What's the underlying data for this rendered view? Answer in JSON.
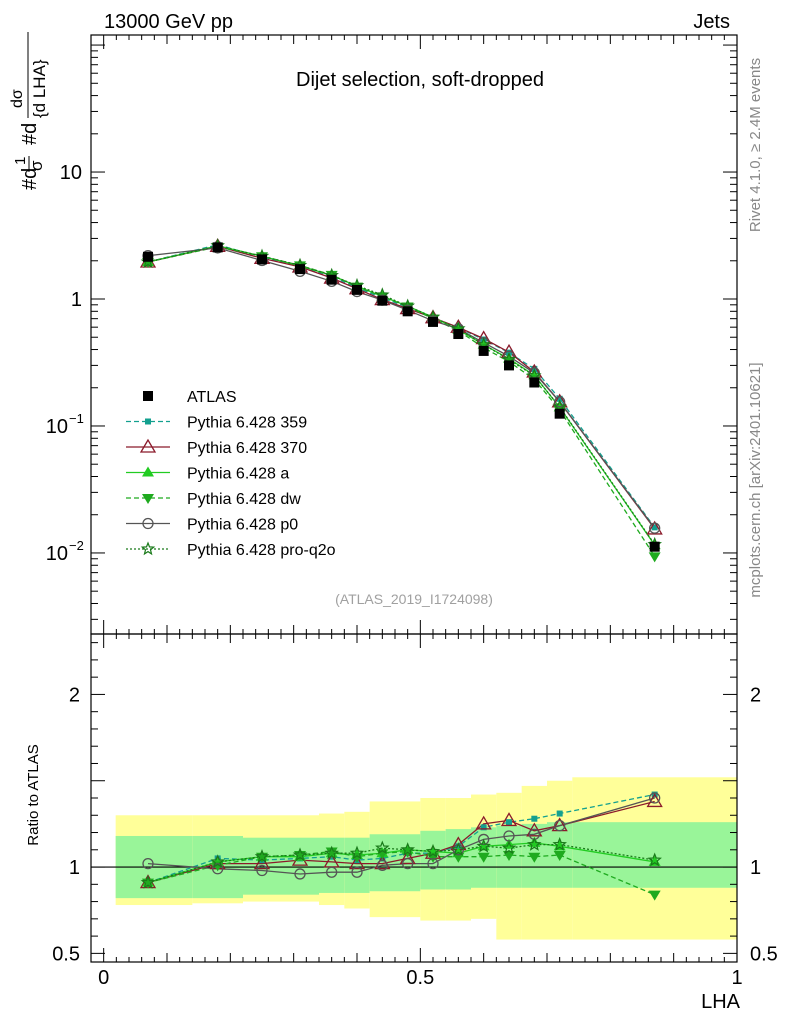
{
  "header": {
    "left": "13000 GeV pp",
    "right": "Jets"
  },
  "side_labels": {
    "rivet": "Rivet 4.1.0, ≥ 2.4M events",
    "mcplots": "mcplots.cern.ch [arXiv:2401.10621]"
  },
  "chart_data": {
    "type": "scatter",
    "title": "Dijet selection, soft-dropped",
    "analysis": "(ATLAS_2019_I1724098)",
    "xlabel": "LHA",
    "ylabel": "#d¹/σ #d dσ/{d LHA}",
    "ratio_ylabel": "Ratio to ATLAS",
    "xlim": [
      -0.02,
      1.0
    ],
    "ylim_main": [
      0.0023,
      120
    ],
    "ylim_ratio": [
      0.45,
      2.35
    ],
    "x_ticks": [
      {
        "v": 0,
        "label": "0"
      },
      {
        "v": 0.5,
        "label": "0.5"
      },
      {
        "v": 1,
        "label": "1"
      }
    ],
    "y_ticks_main": [
      {
        "v": 0.01,
        "base": "10",
        "exp": "−2"
      },
      {
        "v": 0.1,
        "base": "10",
        "exp": "−1"
      },
      {
        "v": 1,
        "label": "1"
      },
      {
        "v": 10,
        "label": "10"
      }
    ],
    "y_ticks_ratio": [
      {
        "v": 0.5,
        "label": "0.5"
      },
      {
        "v": 1,
        "label": "1"
      },
      {
        "v": 2,
        "label": "2"
      }
    ],
    "bins": [
      [
        0.0,
        0.14
      ],
      [
        0.14,
        0.22
      ],
      [
        0.22,
        0.28
      ],
      [
        0.28,
        0.34
      ],
      [
        0.34,
        0.38
      ],
      [
        0.38,
        0.42
      ],
      [
        0.42,
        0.46
      ],
      [
        0.46,
        0.5
      ],
      [
        0.5,
        0.54
      ],
      [
        0.54,
        0.58
      ],
      [
        0.58,
        0.62
      ],
      [
        0.62,
        0.66
      ],
      [
        0.66,
        0.7
      ],
      [
        0.7,
        0.74
      ],
      [
        0.74,
        1.0
      ]
    ],
    "x": [
      0.07,
      0.18,
      0.25,
      0.31,
      0.36,
      0.4,
      0.44,
      0.48,
      0.52,
      0.56,
      0.6,
      0.64,
      0.68,
      0.72,
      0.87
    ],
    "data": {
      "name": "ATLAS",
      "values": [
        2.15,
        2.55,
        2.05,
        1.72,
        1.42,
        1.18,
        0.97,
        0.8,
        0.66,
        0.53,
        0.39,
        0.3,
        0.22,
        0.125,
        0.0112
      ],
      "band_inner": [
        0.82,
        0.82,
        0.84,
        0.84,
        0.85,
        0.85,
        0.86,
        0.86,
        0.87,
        0.87,
        0.88,
        0.88,
        0.88,
        0.88,
        0.88
      ],
      "band_outer": [
        0.78,
        0.79,
        0.8,
        0.8,
        0.78,
        0.76,
        0.71,
        0.71,
        0.69,
        0.69,
        0.7,
        0.58,
        0.58,
        0.58,
        0.58
      ],
      "band_inner_up": [
        1.18,
        1.18,
        1.17,
        1.17,
        1.17,
        1.17,
        1.19,
        1.19,
        1.21,
        1.22,
        1.23,
        1.24,
        1.25,
        1.26,
        1.26
      ],
      "band_outer_up": [
        1.3,
        1.3,
        1.3,
        1.3,
        1.31,
        1.32,
        1.38,
        1.38,
        1.4,
        1.4,
        1.42,
        1.43,
        1.47,
        1.5,
        1.52
      ]
    },
    "series": [
      {
        "name": "Pythia 6.428 359",
        "color": "#13a08f",
        "dash": "5,3",
        "marker": "square-small",
        "ratio": [
          0.91,
          1.05,
          1.04,
          1.05,
          1.06,
          1.04,
          1.05,
          1.08,
          1.08,
          1.12,
          1.23,
          1.26,
          1.28,
          1.31,
          1.42
        ]
      },
      {
        "name": "Pythia 6.428 370",
        "color": "#8b1a2b",
        "dash": "",
        "marker": "triangle-open",
        "ratio": [
          0.91,
          1.02,
          1.02,
          1.04,
          1.03,
          1.02,
          1.02,
          1.05,
          1.08,
          1.13,
          1.25,
          1.27,
          1.21,
          1.24,
          1.38
        ]
      },
      {
        "name": "Pythia 6.428 a",
        "color": "#22cc22",
        "dash": "",
        "marker": "triangle-filled",
        "ratio": [
          0.91,
          1.03,
          1.06,
          1.06,
          1.08,
          1.07,
          1.08,
          1.1,
          1.09,
          1.08,
          1.12,
          1.13,
          1.14,
          1.12,
          1.03
        ]
      },
      {
        "name": "Pythia 6.428 dw",
        "color": "#1faa1f",
        "dash": "5,3",
        "marker": "triangle-down",
        "ratio": [
          0.91,
          1.01,
          1.06,
          1.07,
          1.09,
          1.06,
          1.08,
          1.09,
          1.06,
          1.06,
          1.06,
          1.07,
          1.06,
          1.07,
          0.84
        ]
      },
      {
        "name": "Pythia 6.428 p0",
        "color": "#555555",
        "dash": "",
        "marker": "circle-open",
        "ratio": [
          1.02,
          0.99,
          0.98,
          0.96,
          0.97,
          0.97,
          1.01,
          1.02,
          1.02,
          1.1,
          1.16,
          1.18,
          1.19,
          1.24,
          1.4
        ]
      },
      {
        "name": "Pythia 6.428 pro-q2o",
        "color": "#1a7a1a",
        "dash": "2,2",
        "marker": "star-open",
        "ratio": [
          0.91,
          1.03,
          1.06,
          1.07,
          1.08,
          1.08,
          1.11,
          1.1,
          1.09,
          1.1,
          1.12,
          1.11,
          1.13,
          1.13,
          1.04
        ]
      }
    ]
  }
}
